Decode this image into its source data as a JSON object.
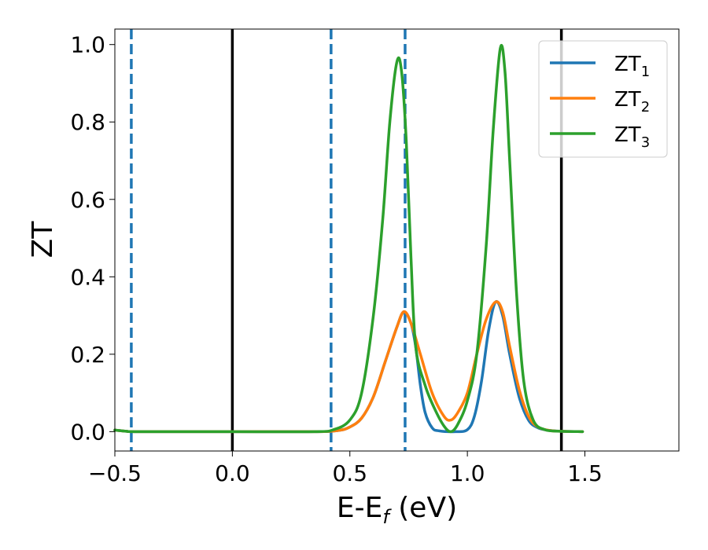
{
  "chart_data": {
    "type": "line",
    "xlabel": "E-E_f (eV)",
    "ylabel": "ZT",
    "xlim": [
      -0.5,
      1.9
    ],
    "ylim": [
      -0.05,
      1.04
    ],
    "xticks": [
      -0.5,
      0.0,
      0.5,
      1.0,
      1.5
    ],
    "yticks": [
      0.0,
      0.2,
      0.4,
      0.6,
      0.8,
      1.0
    ],
    "xtick_labels": [
      "−0.5",
      "0.0",
      "0.5",
      "1.0",
      "1.5"
    ],
    "ytick_labels": [
      "0.0",
      "0.2",
      "0.4",
      "0.6",
      "0.8",
      "1.0"
    ],
    "grid": false,
    "legend_position": "top-right",
    "reference_lines": [
      {
        "x": 0.0,
        "style": "solid",
        "color": "#000000"
      },
      {
        "x": 1.4,
        "style": "solid",
        "color": "#000000"
      },
      {
        "x": -0.43,
        "style": "dashed",
        "color": "#1f77b4"
      },
      {
        "x": 0.42,
        "style": "dashed",
        "color": "#1f77b4"
      },
      {
        "x": 0.735,
        "style": "dashed",
        "color": "#1f77b4"
      }
    ],
    "series": [
      {
        "name": "ZT_1",
        "label_base": "ZT",
        "label_sub": "1",
        "color": "#1f77b4",
        "points": [
          [
            -0.5,
            0.004
          ],
          [
            -0.45,
            0.001
          ],
          [
            -0.4,
            0.0
          ],
          [
            0.0,
            0.0
          ],
          [
            0.35,
            0.0
          ],
          [
            0.45,
            0.003
          ],
          [
            0.5,
            0.012
          ],
          [
            0.55,
            0.035
          ],
          [
            0.6,
            0.09
          ],
          [
            0.65,
            0.18
          ],
          [
            0.7,
            0.27
          ],
          [
            0.73,
            0.31
          ],
          [
            0.76,
            0.28
          ],
          [
            0.78,
            0.22
          ],
          [
            0.8,
            0.12
          ],
          [
            0.82,
            0.05
          ],
          [
            0.85,
            0.01
          ],
          [
            0.88,
            0.002
          ],
          [
            0.95,
            0.0
          ],
          [
            1.0,
            0.005
          ],
          [
            1.03,
            0.04
          ],
          [
            1.06,
            0.13
          ],
          [
            1.09,
            0.26
          ],
          [
            1.12,
            0.335
          ],
          [
            1.15,
            0.3
          ],
          [
            1.18,
            0.2
          ],
          [
            1.22,
            0.09
          ],
          [
            1.26,
            0.03
          ],
          [
            1.3,
            0.01
          ],
          [
            1.35,
            0.003
          ],
          [
            1.4,
            0.001
          ],
          [
            1.49,
            0.0
          ]
        ]
      },
      {
        "name": "ZT_2",
        "label_base": "ZT",
        "label_sub": "2",
        "color": "#ff7f0e",
        "points": [
          [
            -0.5,
            0.004
          ],
          [
            -0.45,
            0.001
          ],
          [
            -0.4,
            0.0
          ],
          [
            0.0,
            0.0
          ],
          [
            0.35,
            0.0
          ],
          [
            0.45,
            0.003
          ],
          [
            0.5,
            0.012
          ],
          [
            0.55,
            0.035
          ],
          [
            0.6,
            0.09
          ],
          [
            0.65,
            0.18
          ],
          [
            0.7,
            0.27
          ],
          [
            0.73,
            0.31
          ],
          [
            0.76,
            0.28
          ],
          [
            0.8,
            0.2
          ],
          [
            0.85,
            0.1
          ],
          [
            0.9,
            0.04
          ],
          [
            0.93,
            0.03
          ],
          [
            0.96,
            0.05
          ],
          [
            1.0,
            0.1
          ],
          [
            1.04,
            0.2
          ],
          [
            1.08,
            0.29
          ],
          [
            1.12,
            0.335
          ],
          [
            1.15,
            0.31
          ],
          [
            1.18,
            0.22
          ],
          [
            1.22,
            0.11
          ],
          [
            1.26,
            0.04
          ],
          [
            1.3,
            0.012
          ],
          [
            1.35,
            0.003
          ],
          [
            1.4,
            0.001
          ],
          [
            1.49,
            0.0
          ]
        ]
      },
      {
        "name": "ZT_3",
        "label_base": "ZT",
        "label_sub": "3",
        "color": "#2ca02c",
        "points": [
          [
            -0.5,
            0.004
          ],
          [
            -0.45,
            0.001
          ],
          [
            -0.4,
            0.0
          ],
          [
            0.0,
            0.0
          ],
          [
            0.35,
            0.0
          ],
          [
            0.43,
            0.005
          ],
          [
            0.5,
            0.03
          ],
          [
            0.55,
            0.1
          ],
          [
            0.6,
            0.3
          ],
          [
            0.64,
            0.55
          ],
          [
            0.67,
            0.8
          ],
          [
            0.7,
            0.955
          ],
          [
            0.72,
            0.93
          ],
          [
            0.74,
            0.75
          ],
          [
            0.76,
            0.45
          ],
          [
            0.78,
            0.22
          ],
          [
            0.82,
            0.12
          ],
          [
            0.86,
            0.06
          ],
          [
            0.9,
            0.015
          ],
          [
            0.93,
            0.0
          ],
          [
            0.96,
            0.02
          ],
          [
            1.0,
            0.08
          ],
          [
            1.04,
            0.2
          ],
          [
            1.08,
            0.48
          ],
          [
            1.11,
            0.78
          ],
          [
            1.14,
            0.99
          ],
          [
            1.16,
            0.93
          ],
          [
            1.18,
            0.7
          ],
          [
            1.21,
            0.35
          ],
          [
            1.24,
            0.13
          ],
          [
            1.28,
            0.03
          ],
          [
            1.33,
            0.005
          ],
          [
            1.4,
            0.001
          ],
          [
            1.49,
            0.0
          ]
        ]
      }
    ]
  }
}
